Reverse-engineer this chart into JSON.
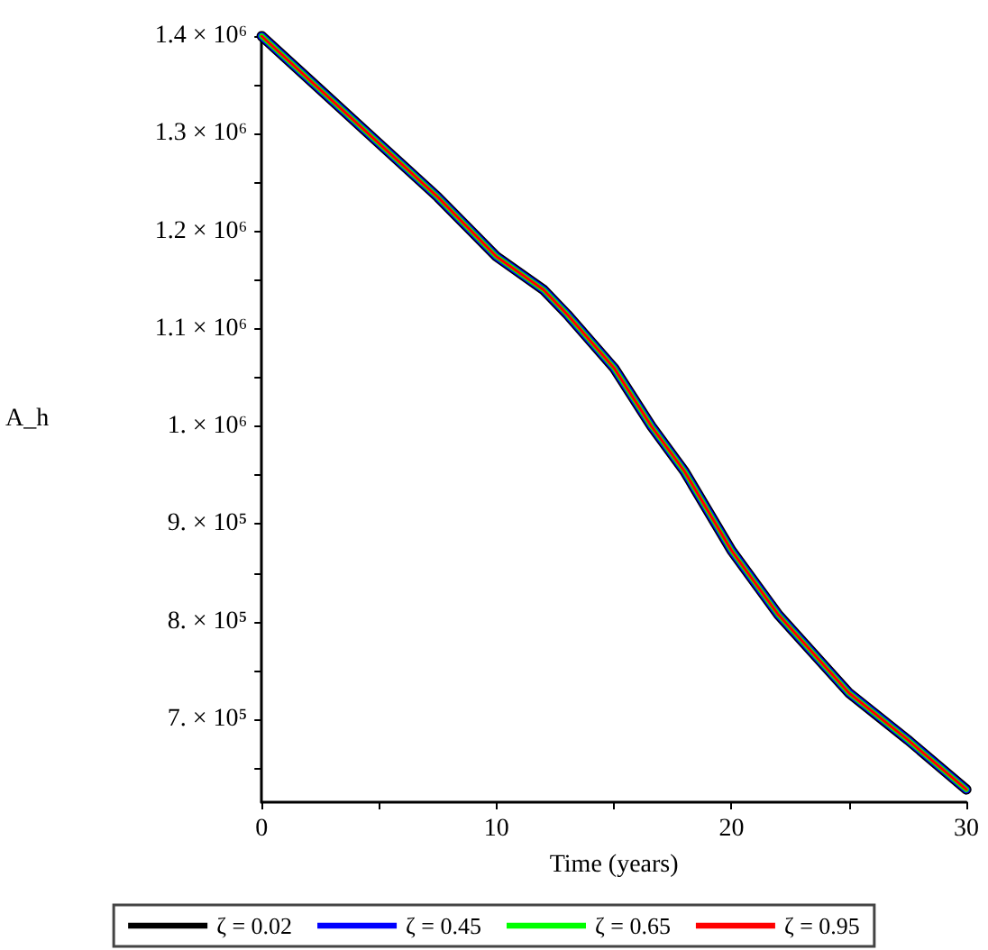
{
  "chart_data": {
    "type": "line",
    "xlabel": "Time (years)",
    "ylabel": "A_h",
    "x": [
      0,
      2.5,
      5,
      7.5,
      10,
      12,
      13,
      15,
      16.6,
      18,
      20,
      22,
      25,
      27.5,
      30
    ],
    "series": [
      {
        "name": "ζ = 0.02",
        "color": "#000000",
        "values": [
          1400000,
          1345000,
          1290000,
          1235000,
          1174000,
          1140000,
          1115000,
          1060000,
          1000000,
          954000,
          873000,
          807000,
          727000,
          679000,
          628000
        ]
      },
      {
        "name": "ζ = 0.45",
        "color": "#0000ff",
        "values": [
          1400000,
          1345000,
          1290000,
          1235000,
          1174000,
          1140000,
          1115000,
          1060000,
          1000000,
          954000,
          873000,
          807000,
          727000,
          679000,
          628000
        ]
      },
      {
        "name": "ζ = 0.65",
        "color": "#00ff00",
        "values": [
          1400000,
          1345000,
          1290000,
          1235000,
          1174000,
          1140000,
          1115000,
          1060000,
          1000000,
          954000,
          873000,
          807000,
          727000,
          679000,
          628000
        ]
      },
      {
        "name": "ζ = 0.95",
        "color": "#ff0000",
        "values": [
          1400000,
          1345000,
          1290000,
          1235000,
          1174000,
          1140000,
          1115000,
          1060000,
          1000000,
          954000,
          873000,
          807000,
          727000,
          679000,
          628000
        ]
      }
    ],
    "xlim": [
      0,
      30
    ],
    "xticks": [
      0,
      {
        "value": 5,
        "label": null
      },
      10,
      {
        "value": 15,
        "label": null
      },
      20,
      {
        "value": 25,
        "label": null
      },
      30
    ],
    "ylim": [
      615000,
      1400000
    ],
    "yticks": [
      {
        "value": 650000,
        "label": null
      },
      {
        "value": 700000,
        "label": "7. × 10⁵"
      },
      {
        "value": 750000,
        "label": null
      },
      {
        "value": 800000,
        "label": "8. × 10⁵"
      },
      {
        "value": 850000,
        "label": null
      },
      {
        "value": 900000,
        "label": "9. × 10⁵"
      },
      {
        "value": 950000,
        "label": null
      },
      {
        "value": 1000000,
        "label": "1. × 10⁶"
      },
      {
        "value": 1050000,
        "label": null
      },
      {
        "value": 1100000,
        "label": "1.1 × 10⁶"
      },
      {
        "value": 1150000,
        "label": null
      },
      {
        "value": 1200000,
        "label": "1.2 × 10⁶"
      },
      {
        "value": 1250000,
        "label": null
      },
      {
        "value": 1300000,
        "label": "1.3 × 10⁶"
      },
      {
        "value": 1350000,
        "label": null
      },
      {
        "value": 1400000,
        "label": "1.4 × 10⁶"
      }
    ],
    "grid": false,
    "legend": "bottom",
    "marker": "none",
    "line_style": "solid"
  }
}
